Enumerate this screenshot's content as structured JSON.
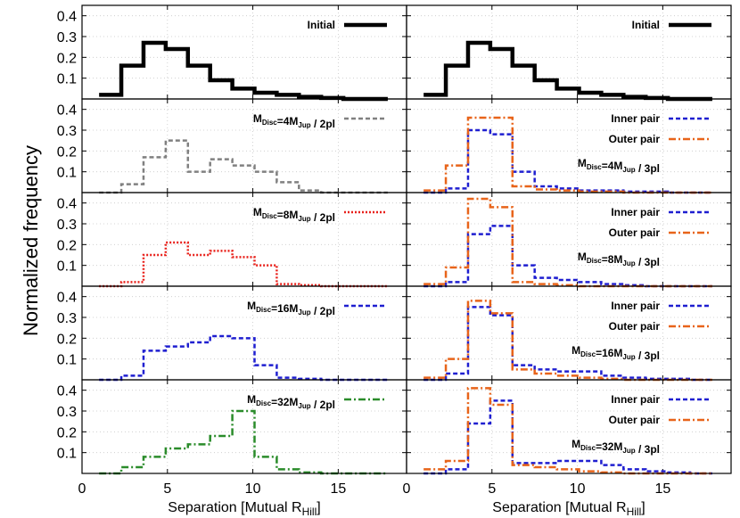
{
  "figure": {
    "ylabel": "Normalized frequency"
  },
  "chart_data": {
    "type": "line",
    "xlabel": "Separation [Mutual R_Hill]",
    "xlim": [
      0,
      19
    ],
    "ylim": [
      0,
      0.45
    ],
    "xticks": [
      0,
      5,
      10,
      15
    ],
    "yticks": [
      0.1,
      0.2,
      0.3,
      0.4
    ],
    "grid": true,
    "bin_edges": [
      1.0,
      2.3,
      3.6,
      4.9,
      6.2,
      7.5,
      8.8,
      10.1,
      11.4,
      12.7,
      14.0,
      15.3,
      16.6,
      17.9
    ],
    "panels": [
      {
        "row": 0,
        "col": 0,
        "legend_position": "top-right",
        "series": [
          {
            "name": "Initial",
            "color": "#000000",
            "dash": "solid",
            "width": 4.5,
            "values": [
              0.02,
              0.16,
              0.27,
              0.24,
              0.16,
              0.09,
              0.05,
              0.03,
              0.02,
              0.01,
              0.005,
              0.0,
              0.0
            ]
          }
        ]
      },
      {
        "row": 0,
        "col": 1,
        "legend_position": "top-right",
        "series": [
          {
            "name": "Initial",
            "color": "#000000",
            "dash": "solid",
            "width": 4.5,
            "values": [
              0.02,
              0.16,
              0.27,
              0.24,
              0.16,
              0.09,
              0.05,
              0.03,
              0.02,
              0.01,
              0.005,
              0.0,
              0.0
            ]
          }
        ]
      },
      {
        "row": 1,
        "col": 0,
        "legend_position": "top-right",
        "label_parts": {
          "pre": "M",
          "sub1": "Disc",
          "mid": "=4M",
          "sub2": "Jup",
          "post": " / 2pl"
        },
        "series": [
          {
            "name": "",
            "color": "#808080",
            "dash": "5,3",
            "width": 2.5,
            "values": [
              0.0,
              0.04,
              0.17,
              0.25,
              0.1,
              0.16,
              0.13,
              0.1,
              0.05,
              0.01,
              0.0,
              0.0,
              0.0
            ]
          }
        ]
      },
      {
        "row": 1,
        "col": 1,
        "legend_position": "top-right",
        "label_parts": {
          "pre": "M",
          "sub1": "Disc",
          "mid": "=4M",
          "sub2": "Jup",
          "post": " / 3pl"
        },
        "series": [
          {
            "name": "Inner pair",
            "color": "#1f1fd0",
            "dash": "5,3",
            "width": 2.5,
            "values": [
              0.0,
              0.02,
              0.3,
              0.28,
              0.1,
              0.03,
              0.02,
              0.01,
              0.01,
              0.005,
              0.005,
              0.0,
              0.0
            ]
          },
          {
            "name": "Outer pair",
            "color": "#e8641a",
            "dash": "8,3,2,3",
            "width": 2.5,
            "values": [
              0.01,
              0.13,
              0.36,
              0.36,
              0.03,
              0.015,
              0.01,
              0.005,
              0.005,
              0.0,
              0.0,
              0.0,
              0.0
            ]
          }
        ]
      },
      {
        "row": 2,
        "col": 0,
        "legend_position": "top-right",
        "label_parts": {
          "pre": "M",
          "sub1": "Disc",
          "mid": "=8M",
          "sub2": "Jup",
          "post": " / 2pl"
        },
        "series": [
          {
            "name": "",
            "color": "#e8201a",
            "dash": "2,2",
            "width": 2.5,
            "values": [
              0.0,
              0.02,
              0.15,
              0.21,
              0.15,
              0.17,
              0.14,
              0.1,
              0.01,
              0.005,
              0.0,
              0.0,
              0.0
            ]
          }
        ]
      },
      {
        "row": 2,
        "col": 1,
        "legend_position": "top-right",
        "label_parts": {
          "pre": "M",
          "sub1": "Disc",
          "mid": "=8M",
          "sub2": "Jup",
          "post": " / 3pl"
        },
        "series": [
          {
            "name": "Inner pair",
            "color": "#1f1fd0",
            "dash": "5,3",
            "width": 2.5,
            "values": [
              0.0,
              0.02,
              0.25,
              0.29,
              0.1,
              0.04,
              0.03,
              0.02,
              0.01,
              0.005,
              0.0,
              0.0,
              0.0
            ]
          },
          {
            "name": "Outer pair",
            "color": "#e8641a",
            "dash": "8,3,2,3",
            "width": 2.5,
            "values": [
              0.01,
              0.09,
              0.42,
              0.38,
              0.02,
              0.01,
              0.005,
              0.0,
              0.0,
              0.0,
              0.0,
              0.0,
              0.0
            ]
          }
        ]
      },
      {
        "row": 3,
        "col": 0,
        "legend_position": "top-right",
        "label_parts": {
          "pre": "M",
          "sub1": "Disc",
          "mid": "=16M",
          "sub2": "Jup",
          "post": " / 2pl"
        },
        "series": [
          {
            "name": "",
            "color": "#1f1fd0",
            "dash": "5,3",
            "width": 2.5,
            "values": [
              0.0,
              0.02,
              0.14,
              0.16,
              0.18,
              0.21,
              0.2,
              0.07,
              0.01,
              0.005,
              0.0,
              0.0,
              0.0
            ]
          }
        ]
      },
      {
        "row": 3,
        "col": 1,
        "legend_position": "top-right",
        "label_parts": {
          "pre": "M",
          "sub1": "Disc",
          "mid": "=16M",
          "sub2": "Jup",
          "post": " / 3pl"
        },
        "series": [
          {
            "name": "Inner pair",
            "color": "#1f1fd0",
            "dash": "5,3",
            "width": 2.5,
            "values": [
              0.0,
              0.03,
              0.35,
              0.31,
              0.07,
              0.05,
              0.04,
              0.04,
              0.02,
              0.01,
              0.005,
              0.005,
              0.0
            ]
          },
          {
            "name": "Outer pair",
            "color": "#e8641a",
            "dash": "8,3,2,3",
            "width": 2.5,
            "values": [
              0.01,
              0.1,
              0.38,
              0.32,
              0.05,
              0.03,
              0.02,
              0.01,
              0.005,
              0.0,
              0.0,
              0.0,
              0.0
            ]
          }
        ]
      },
      {
        "row": 4,
        "col": 0,
        "legend_position": "top-right",
        "label_parts": {
          "pre": "M",
          "sub1": "Disc",
          "mid": "=32M",
          "sub2": "Jup",
          "post": " / 2pl"
        },
        "series": [
          {
            "name": "",
            "color": "#2a8c2a",
            "dash": "8,3,2,3",
            "width": 2.5,
            "values": [
              0.0,
              0.03,
              0.08,
              0.12,
              0.14,
              0.18,
              0.3,
              0.08,
              0.02,
              0.005,
              0.0,
              0.0,
              0.0
            ]
          }
        ]
      },
      {
        "row": 4,
        "col": 1,
        "legend_position": "top-right",
        "label_parts": {
          "pre": "M",
          "sub1": "Disc",
          "mid": "=32M",
          "sub2": "Jup",
          "post": " / 3pl"
        },
        "series": [
          {
            "name": "Inner pair",
            "color": "#1f1fd0",
            "dash": "5,3",
            "width": 2.5,
            "values": [
              0.0,
              0.02,
              0.24,
              0.35,
              0.05,
              0.05,
              0.06,
              0.06,
              0.04,
              0.02,
              0.01,
              0.005,
              0.0
            ]
          },
          {
            "name": "Outer pair",
            "color": "#e8641a",
            "dash": "8,3,2,3",
            "width": 2.5,
            "values": [
              0.02,
              0.06,
              0.41,
              0.33,
              0.04,
              0.03,
              0.02,
              0.01,
              0.005,
              0.0,
              0.0,
              0.0,
              0.0
            ]
          }
        ]
      }
    ]
  }
}
